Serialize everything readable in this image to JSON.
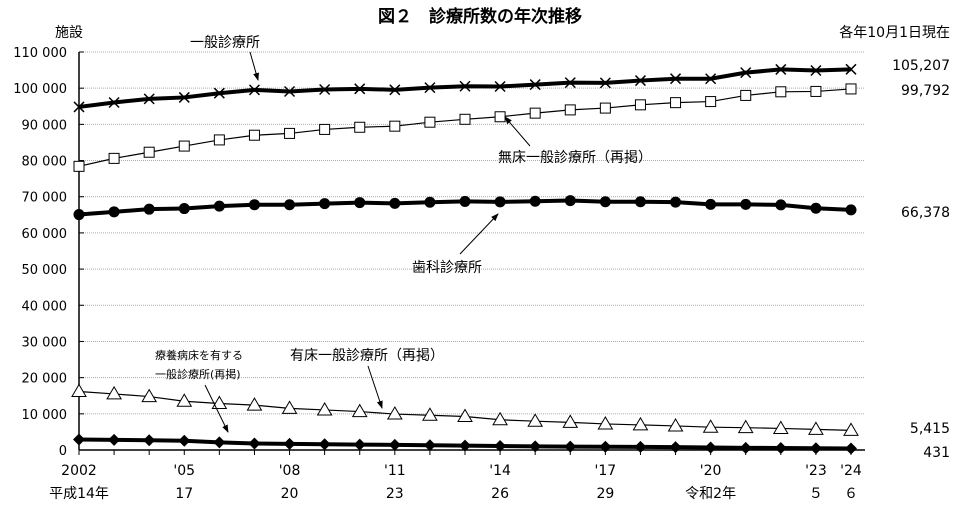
{
  "chart_data": {
    "type": "line",
    "title": "図２　診療所数の年次推移",
    "ylabel": "施設",
    "note": "各年10月1日現在",
    "ylim": [
      0,
      110000
    ],
    "yticks": [
      "0",
      "10 000",
      "20 000",
      "30 000",
      "40 000",
      "50 000",
      "60 000",
      "70 000",
      "80 000",
      "90 000",
      "100 000",
      "110 000"
    ],
    "grid": true,
    "x": [
      2002,
      2003,
      2004,
      2005,
      2006,
      2007,
      2008,
      2009,
      2010,
      2011,
      2012,
      2013,
      2014,
      2015,
      2016,
      2017,
      2018,
      2019,
      2020,
      2021,
      2022,
      2023,
      2024
    ],
    "xtick_labels_western": [
      {
        "year": 2002,
        "label": "2002"
      },
      {
        "year": 2005,
        "label": "'05"
      },
      {
        "year": 2008,
        "label": "'08"
      },
      {
        "year": 2011,
        "label": "'11"
      },
      {
        "year": 2014,
        "label": "'14"
      },
      {
        "year": 2017,
        "label": "'17"
      },
      {
        "year": 2020,
        "label": "'20"
      },
      {
        "year": 2023,
        "label": "'23"
      },
      {
        "year": 2024,
        "label": "'24"
      }
    ],
    "xtick_labels_japanese": [
      {
        "year": 2002,
        "label": "平成14年"
      },
      {
        "year": 2005,
        "label": "17"
      },
      {
        "year": 2008,
        "label": "20"
      },
      {
        "year": 2011,
        "label": "23"
      },
      {
        "year": 2014,
        "label": "26"
      },
      {
        "year": 2017,
        "label": "29"
      },
      {
        "year": 2020,
        "label": "令和2年"
      },
      {
        "year": 2023,
        "label": "５"
      },
      {
        "year": 2024,
        "label": "６"
      }
    ],
    "series": [
      {
        "name": "一般診療所",
        "marker": "x",
        "bold": true,
        "end_label": "105,207",
        "values": [
          94819,
          96050,
          97051,
          97442,
          98609,
          99532,
          99083,
          99635,
          99824,
          99547,
          100152,
          100528,
          100461,
          100995,
          101529,
          101471,
          102105,
          102616,
          102612,
          104292,
          105182,
          104894,
          105207
        ]
      },
      {
        "name": "無床一般診療所（再掲）",
        "marker": "square",
        "bold": false,
        "end_label": "99,792",
        "values": [
          78400,
          80600,
          82300,
          84000,
          85700,
          87000,
          87500,
          88600,
          89200,
          89500,
          90600,
          91400,
          92100,
          93100,
          94000,
          94500,
          95400,
          96000,
          96300,
          98000,
          99000,
          99100,
          99792
        ]
      },
      {
        "name": "歯科診療所",
        "marker": "circle",
        "bold": true,
        "end_label": "66,378",
        "values": [
          65073,
          65828,
          66557,
          66732,
          67392,
          67798,
          67779,
          68097,
          68384,
          68156,
          68474,
          68701,
          68592,
          68737,
          68940,
          68609,
          68613,
          68500,
          67874,
          67899,
          67755,
          66818,
          66378
        ]
      },
      {
        "name": "有床一般診療所（再掲）",
        "marker": "triangle",
        "bold": false,
        "end_label": "5,415",
        "values": [
          16178,
          15500,
          14765,
          13477,
          12858,
          12399,
          11500,
          11072,
          10620,
          9934,
          9596,
          9249,
          8355,
          7961,
          7629,
          7202,
          6934,
          6644,
          6303,
          6169,
          5958,
          5696,
          5415
        ]
      },
      {
        "name": "療養病床を有する一般診療所(再掲)",
        "name_lines": [
          "療養病床を有する",
          "一般診療所(再掲)"
        ],
        "marker": "diamond",
        "bold": true,
        "end_label": "431",
        "values": [
          2900,
          2800,
          2700,
          2544,
          2100,
          1800,
          1700,
          1600,
          1500,
          1400,
          1300,
          1200,
          1100,
          1000,
          950,
          900,
          850,
          780,
          700,
          600,
          550,
          480,
          431
        ]
      }
    ]
  }
}
